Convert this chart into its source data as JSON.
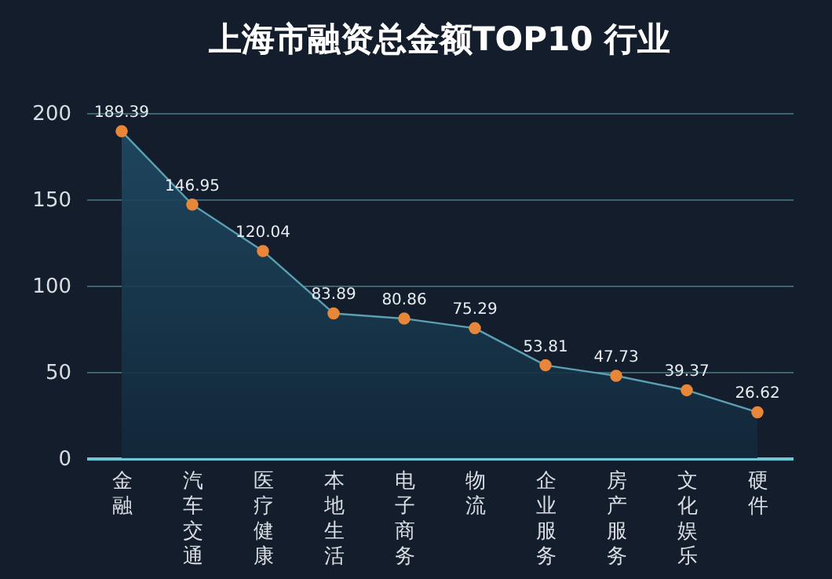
{
  "chart_data": {
    "type": "area",
    "title": "上海市融资总金额TOP10 行业",
    "categories": [
      "金融",
      "汽车交通",
      "医疗健康",
      "本地生活",
      "电子商务",
      "物流",
      "企业服务",
      "房产服务",
      "文化娱乐",
      "硬件"
    ],
    "series": [
      {
        "color": "#5b9fb3",
        "values": [
          189.39,
          146.95,
          120.04,
          83.89,
          80.86,
          75.29,
          53.81,
          47.73,
          39.37,
          26.62
        ]
      }
    ],
    "ylim": [
      0,
      200
    ],
    "yticks": [
      0,
      50,
      100,
      150,
      200
    ],
    "grid": "y",
    "marker": "circle",
    "data_labels": true
  }
}
